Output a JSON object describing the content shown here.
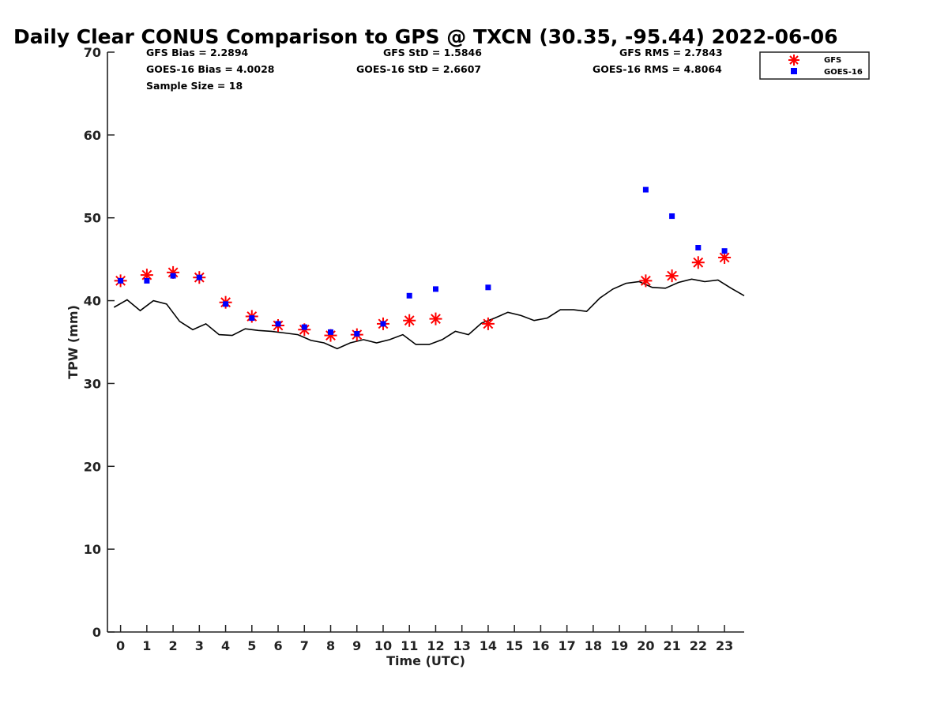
{
  "chart_data": {
    "type": "scatter",
    "title": "Daily Clear CONUS Comparison to GPS @ TXCN (30.35, -95.44) 2022-06-06",
    "xlabel": "Time (UTC)",
    "ylabel": "TPW (mm)",
    "xlim": [
      -0.5,
      23.75
    ],
    "ylim": [
      0,
      70
    ],
    "xticks": [
      "0",
      "1",
      "2",
      "3",
      "4",
      "5",
      "6",
      "7",
      "8",
      "9",
      "10",
      "11",
      "12",
      "13",
      "14",
      "15",
      "16",
      "17",
      "18",
      "19",
      "20",
      "21",
      "22",
      "23"
    ],
    "yticks": [
      "0",
      "10",
      "20",
      "30",
      "40",
      "50",
      "60",
      "70"
    ],
    "grid": false,
    "legend_position": "top-right, outside plot area",
    "stats": {
      "gfs_bias": "GFS Bias = 2.2894",
      "goes_bias": "GOES-16 Bias = 4.0028",
      "sample_size": "Sample Size = 18",
      "gfs_std": "GFS StD = 1.5846",
      "goes_std": "GOES-16 StD = 2.6607",
      "gfs_rms": "GFS RMS = 2.7843",
      "goes_rms": "GOES-16 RMS = 4.8064"
    },
    "series": [
      {
        "name": "GFS",
        "marker": "asterisk",
        "color": "#ff0000",
        "x": [
          0,
          1,
          2,
          3,
          4,
          5,
          6,
          7,
          8,
          9,
          10,
          11,
          12,
          14,
          20,
          21,
          22,
          23
        ],
        "y": [
          42.4,
          43.1,
          43.4,
          42.8,
          39.8,
          38.1,
          37.0,
          36.5,
          35.8,
          35.9,
          37.2,
          37.6,
          37.8,
          37.2,
          42.4,
          43.0,
          44.6,
          45.2
        ]
      },
      {
        "name": "GOES-16",
        "marker": "square",
        "color": "#0000ff",
        "x": [
          0,
          1,
          2,
          3,
          4,
          5,
          6,
          7,
          8,
          9,
          10,
          11,
          12,
          14,
          20,
          21,
          22,
          23
        ],
        "y": [
          42.4,
          42.4,
          43.0,
          42.8,
          39.6,
          37.9,
          37.2,
          36.8,
          36.2,
          36.0,
          37.2,
          40.6,
          41.4,
          41.6,
          53.4,
          50.2,
          46.4,
          46.0
        ]
      },
      {
        "name": "",
        "marker": "line",
        "color": "#000000",
        "x": [
          -0.25,
          0.25,
          0.75,
          1.25,
          1.75,
          2.25,
          2.75,
          3.25,
          3.75,
          4.25,
          4.75,
          5.25,
          5.75,
          6.25,
          6.75,
          7.25,
          7.75,
          8.25,
          8.75,
          9.25,
          9.75,
          10.25,
          10.75,
          11.25,
          11.75,
          12.25,
          12.75,
          13.25,
          13.75,
          14.25,
          14.75,
          15.25,
          15.75,
          16.25,
          16.75,
          17.25,
          17.75,
          18.25,
          18.75,
          19.25,
          19.75,
          20.25,
          20.75,
          21.25,
          21.75,
          22.25,
          22.75,
          23.25,
          23.75
        ],
        "y": [
          39.2,
          40.1,
          38.8,
          40.0,
          39.6,
          37.5,
          36.5,
          37.2,
          35.9,
          35.8,
          36.6,
          36.4,
          36.3,
          36.1,
          35.9,
          35.2,
          34.9,
          34.2,
          34.9,
          35.3,
          34.9,
          35.3,
          35.9,
          34.7,
          34.7,
          35.3,
          36.3,
          35.9,
          37.3,
          37.9,
          38.6,
          38.2,
          37.6,
          37.9,
          38.9,
          38.9,
          38.7,
          40.3,
          41.4,
          42.1,
          42.3,
          41.6,
          41.5,
          42.2,
          42.6,
          42.3,
          42.5,
          41.5,
          40.6
        ]
      }
    ]
  }
}
